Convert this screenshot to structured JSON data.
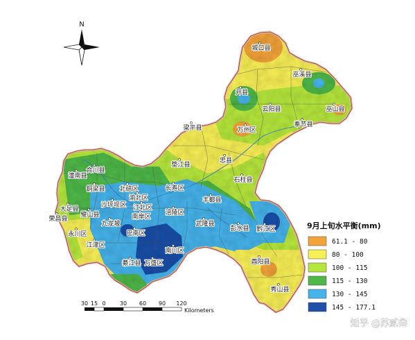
{
  "compass": {
    "north_label": "N"
  },
  "legend": {
    "title": "9月上旬水平衡(mm)",
    "classes": [
      {
        "range": "61.1 - 80",
        "color": "#f2a33a"
      },
      {
        "range": "80 - 100",
        "color": "#f7ef56"
      },
      {
        "range": "100 - 115",
        "color": "#b6e63c"
      },
      {
        "range": "115 - 130",
        "color": "#4fb848"
      },
      {
        "range": "130 - 145",
        "color": "#46b3ea"
      },
      {
        "range": "145 - 177.1",
        "color": "#1f4fa8"
      }
    ]
  },
  "scale_bar": {
    "ticks": [
      "30",
      "15",
      "0",
      "30",
      "60",
      "90",
      "120"
    ],
    "unit": "Kilometers"
  },
  "watermark": "知乎 @苏贰叁",
  "places": [
    {
      "id": "chengkou",
      "name": "城口县"
    },
    {
      "id": "wuxi",
      "name": "巫溪县"
    },
    {
      "id": "kaixian",
      "name": "开县"
    },
    {
      "id": "wushan",
      "name": "巫山县"
    },
    {
      "id": "yunyang",
      "name": "云阳县"
    },
    {
      "id": "fengjie",
      "name": "奉节县"
    },
    {
      "id": "wanzhou",
      "name": "万州区"
    },
    {
      "id": "liangping",
      "name": "梁平县"
    },
    {
      "id": "zhongxian",
      "name": "忠县"
    },
    {
      "id": "dianjiang",
      "name": "垫江县"
    },
    {
      "id": "shizhu",
      "name": "石柱县"
    },
    {
      "id": "tongnan",
      "name": "潼南县"
    },
    {
      "id": "hechuan",
      "name": "合川县"
    },
    {
      "id": "tongliang",
      "name": "铜梁县"
    },
    {
      "id": "beibei",
      "name": "北碚区"
    },
    {
      "id": "changshou",
      "name": "长寿区"
    },
    {
      "id": "yubei",
      "name": "渝北区"
    },
    {
      "id": "shapingba",
      "name": "沙坪坝区"
    },
    {
      "id": "jiangbei",
      "name": "江北区"
    },
    {
      "id": "nanan",
      "name": "南岸区"
    },
    {
      "id": "fengdu",
      "name": "丰都县"
    },
    {
      "id": "fuling",
      "name": "涪陵区"
    },
    {
      "id": "dazu",
      "name": "大足县"
    },
    {
      "id": "bishan",
      "name": "璧山县"
    },
    {
      "id": "rongchang",
      "name": "荣昌县"
    },
    {
      "id": "jiulongpo",
      "name": "九龙坡"
    },
    {
      "id": "yongchuan",
      "name": "永川区"
    },
    {
      "id": "banan",
      "name": "巴南区"
    },
    {
      "id": "wulong",
      "name": "武隆县"
    },
    {
      "id": "pengshui",
      "name": "彭水县"
    },
    {
      "id": "qianjiang",
      "name": "黔江区"
    },
    {
      "id": "jiangjin",
      "name": "江津区"
    },
    {
      "id": "nanchuan",
      "name": "南川区"
    },
    {
      "id": "qijiang",
      "name": "綦江县"
    },
    {
      "id": "wansheng",
      "name": "万盛区"
    },
    {
      "id": "youyang",
      "name": "酉阳县"
    },
    {
      "id": "xiushan",
      "name": "秀山县"
    }
  ]
}
